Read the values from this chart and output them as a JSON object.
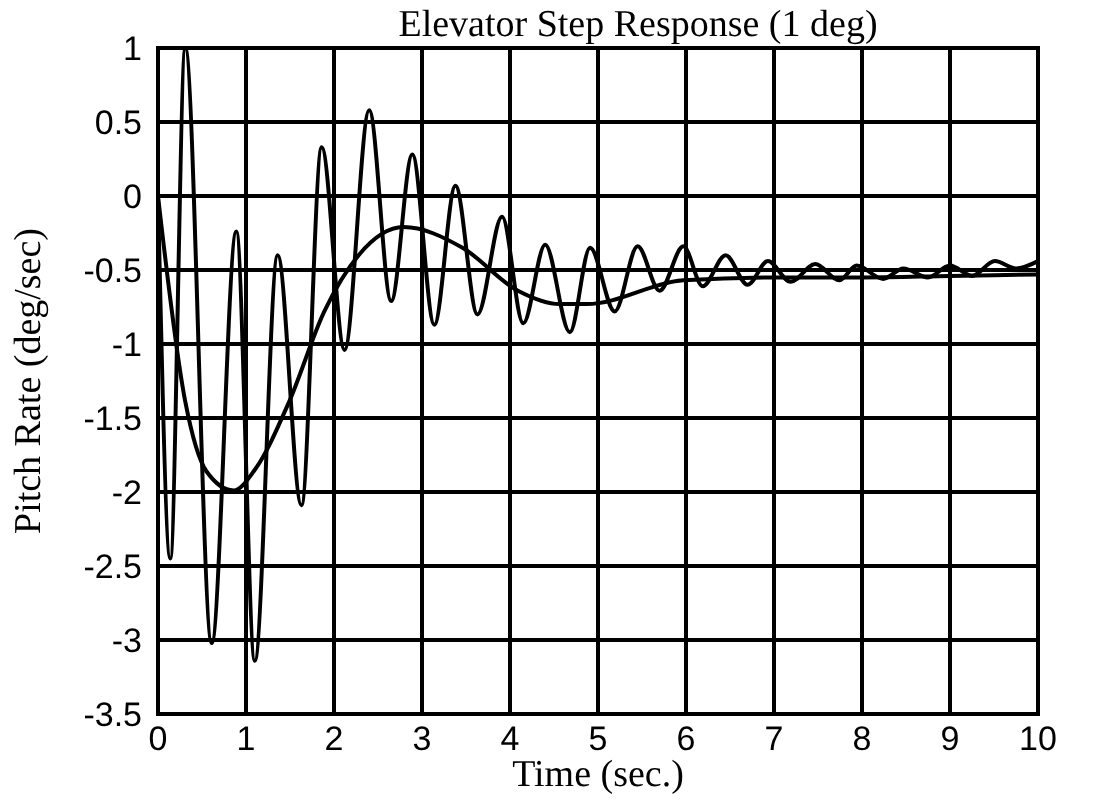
{
  "chart_data": {
    "type": "line",
    "title": "Elevator Step Response (1 deg)",
    "xlabel": "Time (sec.)",
    "ylabel": "Pitch Rate (deg/sec)",
    "xlim": [
      0,
      10
    ],
    "ylim": [
      -3.5,
      1
    ],
    "xticks": [
      0,
      1,
      2,
      3,
      4,
      5,
      6,
      7,
      8,
      9,
      10
    ],
    "yticks": [
      -3.5,
      -3,
      -2.5,
      -2,
      -1.5,
      -1,
      -0.5,
      0,
      0.5,
      1
    ],
    "grid": true,
    "line_style": "solid",
    "series": [
      {
        "color": "#000000",
        "x": [
          0,
          0.14,
          0.31,
          0.61,
          0.89,
          1.1,
          1.36,
          1.63,
          1.86,
          2.12,
          2.4,
          2.65,
          2.89,
          3.14,
          3.38,
          3.63,
          3.91,
          4.15,
          4.4,
          4.68,
          4.91,
          5.19,
          5.45,
          5.7,
          5.97,
          6.19,
          6.45,
          6.7,
          6.93,
          7.19,
          7.47,
          7.74,
          7.94,
          8.24,
          8.47,
          8.75,
          9.0,
          9.25,
          9.51,
          9.75,
          10
        ],
        "values": [
          0,
          -2.45,
          1,
          -3.02,
          -0.24,
          -3.14,
          -0.4,
          -2.09,
          0.33,
          -1.04,
          0.58,
          -0.71,
          0.28,
          -0.87,
          0.07,
          -0.8,
          -0.14,
          -0.86,
          -0.33,
          -0.92,
          -0.35,
          -0.78,
          -0.34,
          -0.64,
          -0.34,
          -0.61,
          -0.4,
          -0.6,
          -0.44,
          -0.58,
          -0.46,
          -0.57,
          -0.47,
          -0.56,
          -0.49,
          -0.55,
          -0.47,
          -0.54,
          -0.44,
          -0.49,
          -0.44
        ]
      },
      {
        "color": "#000000",
        "x": [
          0,
          0.31,
          0.55,
          0.86,
          1.1,
          1.49,
          1.89,
          2.28,
          2.79,
          3.46,
          4.09,
          4.56,
          4.87,
          5.97,
          7,
          8,
          9,
          10
        ],
        "values": [
          0,
          -1.39,
          -1.86,
          -1.99,
          -1.85,
          -1.39,
          -0.78,
          -0.4,
          -0.21,
          -0.35,
          -0.64,
          -0.73,
          -0.73,
          -0.57,
          -0.55,
          -0.55,
          -0.54,
          -0.53
        ]
      }
    ]
  }
}
